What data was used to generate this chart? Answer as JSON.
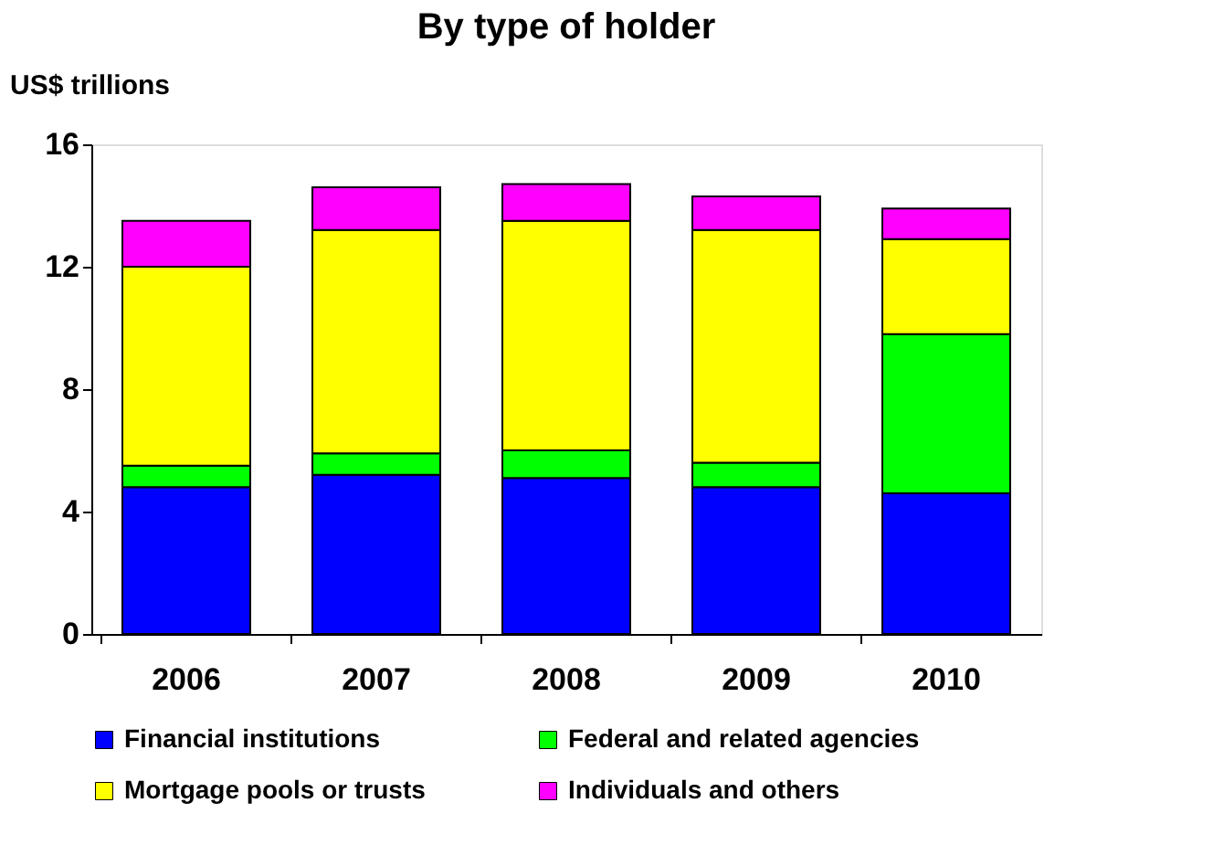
{
  "chart_data": {
    "type": "bar",
    "stacked": true,
    "title": "By type of holder",
    "ylabel": "US$ trillions",
    "categories": [
      "2006",
      "2007",
      "2008",
      "2009",
      "2010"
    ],
    "series": [
      {
        "name": "Financial institutions",
        "color": "#0000ff",
        "values": [
          4.8,
          5.2,
          5.1,
          4.8,
          4.6
        ]
      },
      {
        "name": "Federal and related agencies",
        "color": "#00ff00",
        "values": [
          0.7,
          0.7,
          0.9,
          0.8,
          5.2
        ]
      },
      {
        "name": "Mortgage pools or trusts",
        "color": "#ffff00",
        "values": [
          6.5,
          7.3,
          7.5,
          7.6,
          3.1
        ]
      },
      {
        "name": "Individuals and others",
        "color": "#ff00ff",
        "values": [
          1.5,
          1.4,
          1.2,
          1.1,
          1.0
        ]
      }
    ],
    "ylim": [
      0,
      16
    ],
    "yticks": [
      0,
      4,
      8,
      12,
      16
    ],
    "grid": false,
    "legend": "bottom"
  }
}
